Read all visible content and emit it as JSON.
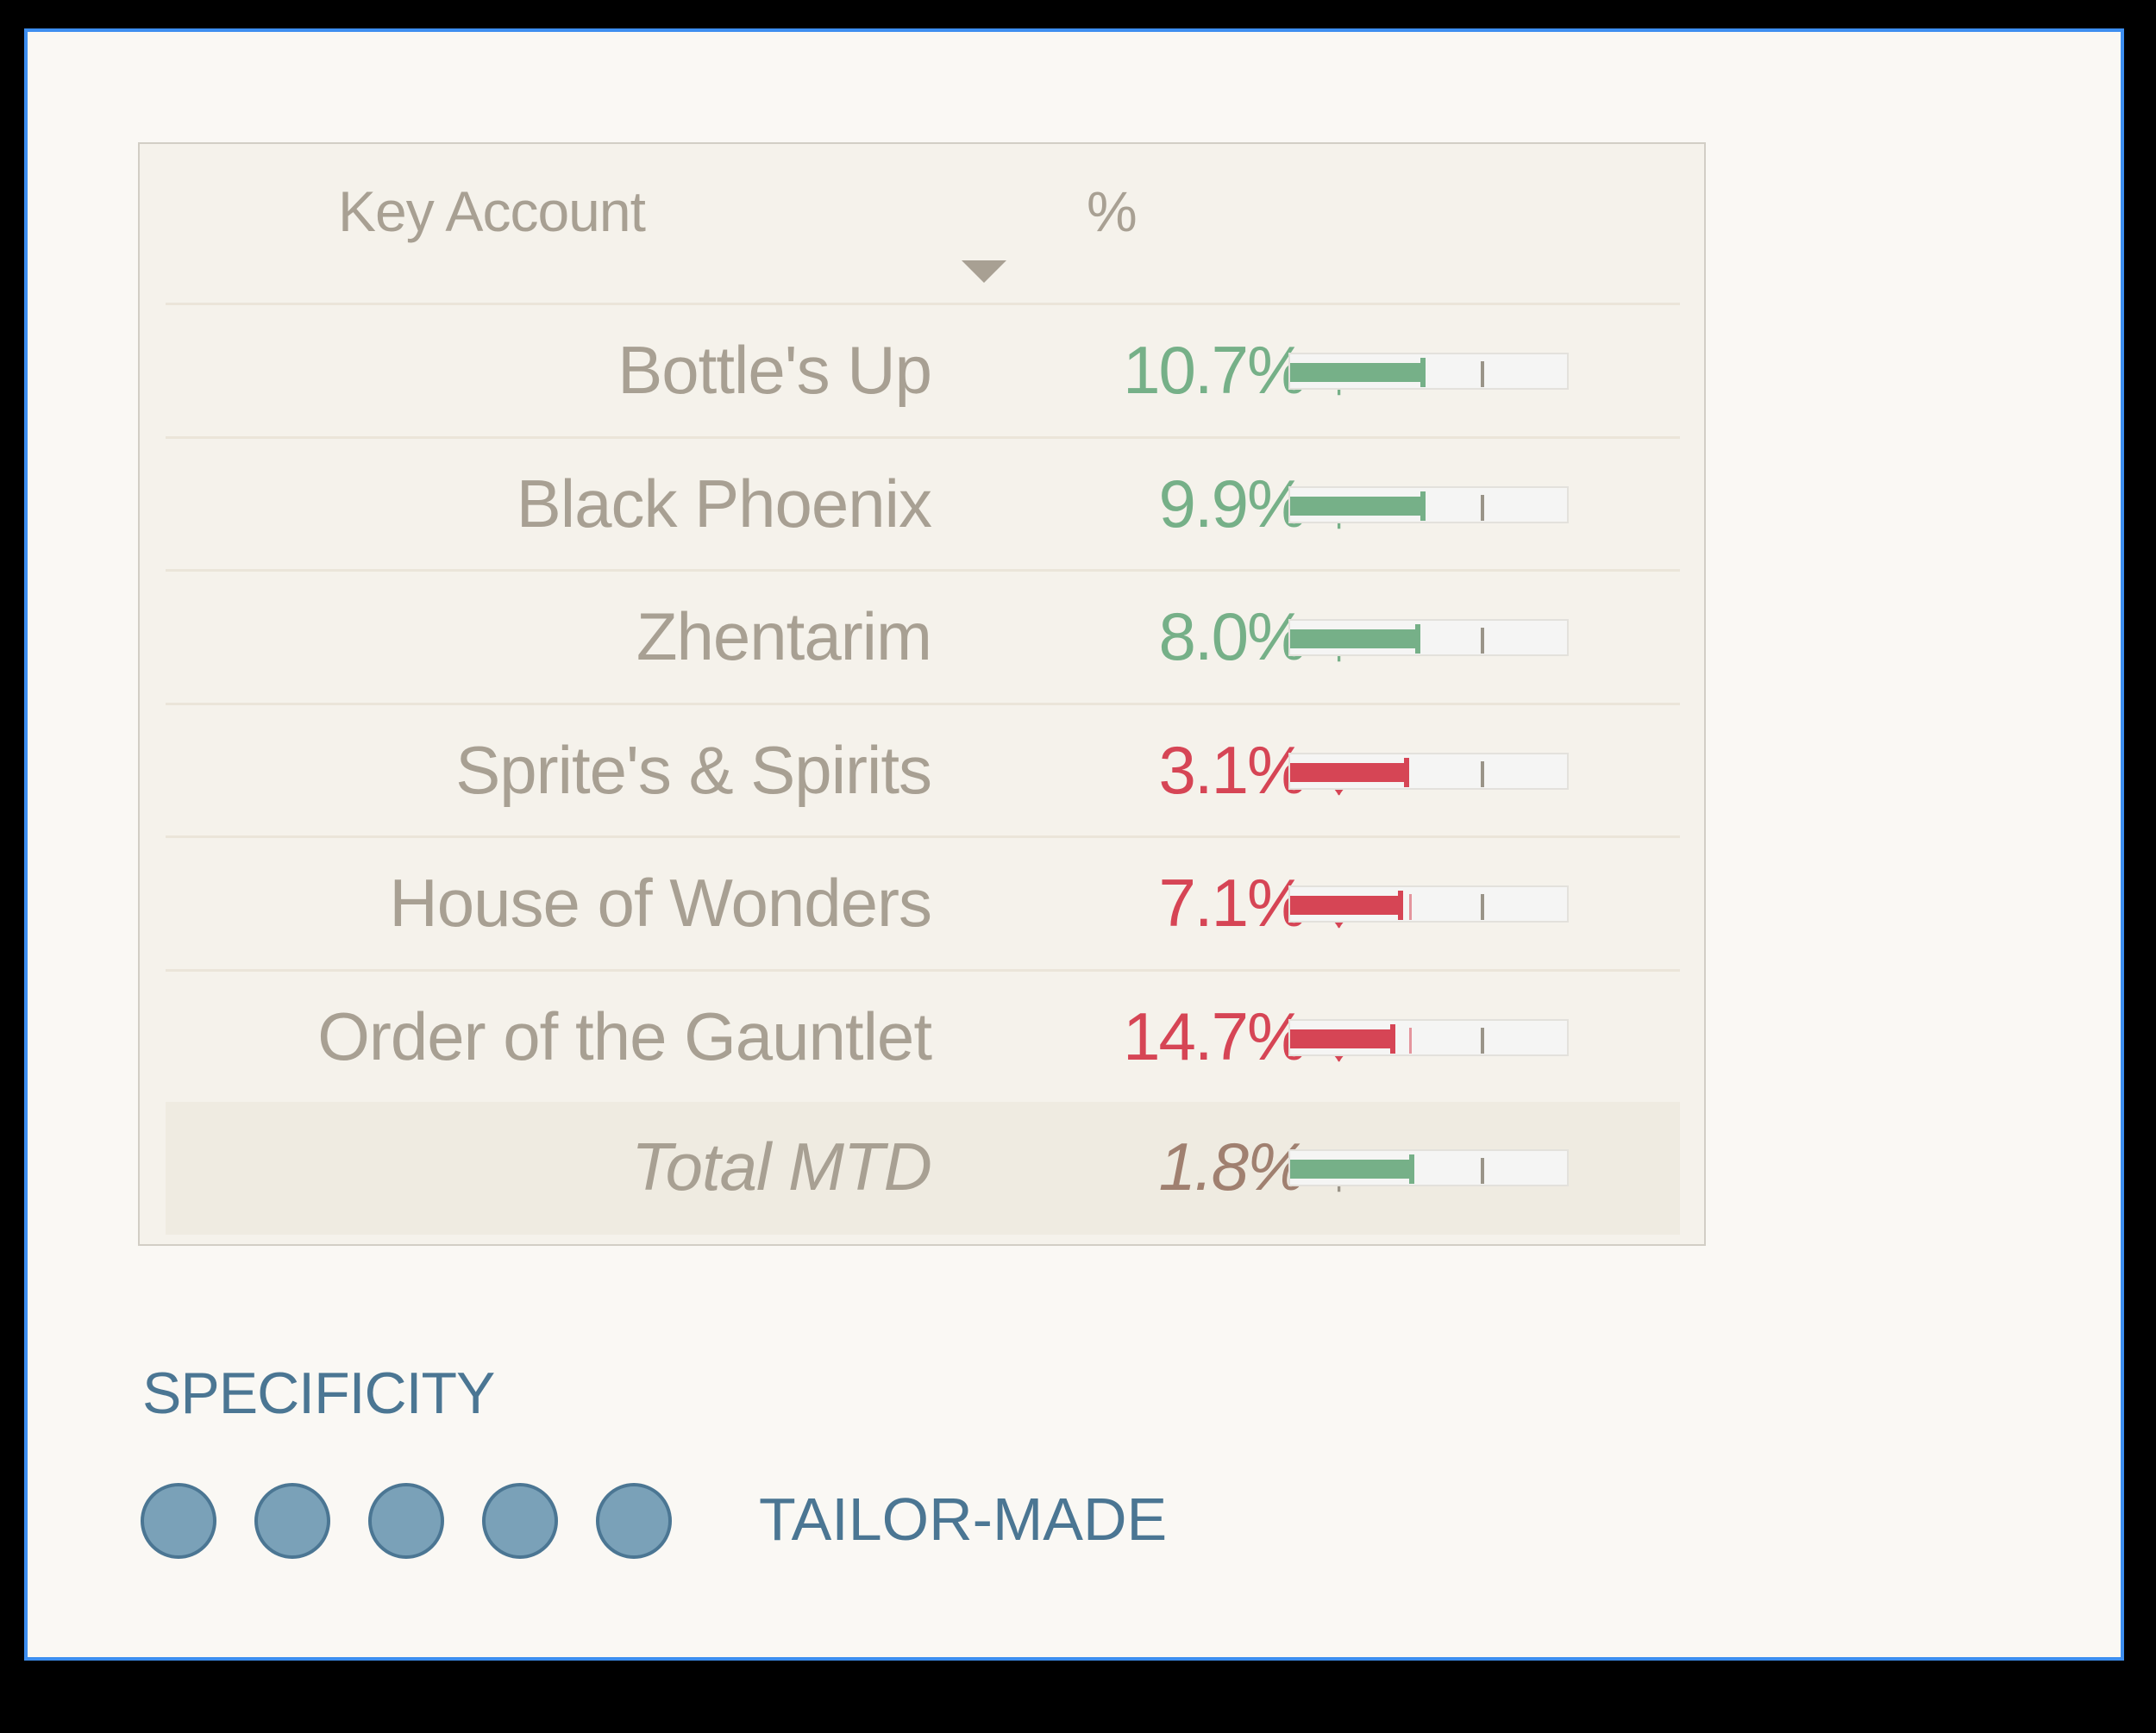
{
  "table": {
    "headers": {
      "name": "Key Account",
      "pct": "%"
    },
    "sort": {
      "column": "%",
      "direction": "descending"
    },
    "rows": [
      {
        "name": "Bottle's Up",
        "value": "10.7%",
        "trend": "↑",
        "status": "up",
        "bar_pct": 48,
        "ghost_pct": null
      },
      {
        "name": "Black Phoenix",
        "value": "9.9%",
        "trend": "↑",
        "status": "up",
        "bar_pct": 48,
        "ghost_pct": null
      },
      {
        "name": "Zhentarim",
        "value": "8.0%",
        "trend": "↑",
        "status": "up",
        "bar_pct": 46,
        "ghost_pct": null
      },
      {
        "name": "Sprite's & Spirits",
        "value": "3.1%",
        "trend": "↓",
        "status": "down",
        "bar_pct": 42,
        "ghost_pct": null
      },
      {
        "name": "House of Wonders",
        "value": "7.1%",
        "trend": "↓",
        "status": "down",
        "bar_pct": 40,
        "ghost_pct": 43
      },
      {
        "name": "Order of the Gauntlet",
        "value": "14.7%",
        "trend": "↓",
        "status": "down",
        "bar_pct": 37,
        "ghost_pct": 43
      }
    ],
    "total": {
      "name": "Total MTD",
      "value": "1.8%",
      "trend": "↑",
      "status": "up",
      "bar_pct": 44,
      "ghost_pct": null
    }
  },
  "colors": {
    "up": "#76b088",
    "down": "#d64555",
    "total_value": "#a08070",
    "target": "#9a9488",
    "accent": "#4b7693"
  },
  "specificity": {
    "title": "SPECIFICITY",
    "dots": 5,
    "filled": 5,
    "label": "TAILOR-MADE"
  }
}
